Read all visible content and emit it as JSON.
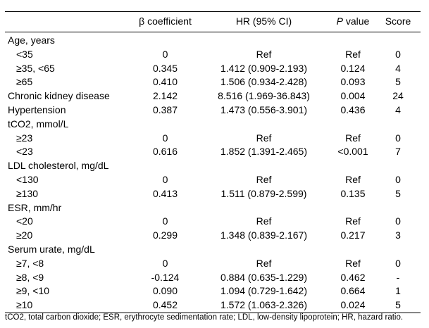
{
  "header": {
    "col0": "",
    "col1": "β coefficient",
    "col2": "HR (95% CI)",
    "col3_italic": "P",
    "col3_rest": " value",
    "col4": "Score"
  },
  "rows": [
    {
      "label": "Age, years",
      "sub": false,
      "beta": "",
      "hr": "",
      "p": "",
      "score": ""
    },
    {
      "label": "<35",
      "sub": true,
      "beta": "0",
      "hr": "Ref",
      "p": "Ref",
      "score": "0"
    },
    {
      "label": "≥35, <65",
      "sub": true,
      "beta": "0.345",
      "hr": "1.412 (0.909-2.193)",
      "p": "0.124",
      "score": "4"
    },
    {
      "label": "≥65",
      "sub": true,
      "beta": "0.410",
      "hr": "1.506 (0.934-2.428)",
      "p": "0.093",
      "score": "5"
    },
    {
      "label": "Chronic kidney disease",
      "sub": false,
      "beta": "2.142",
      "hr": "8.516 (1.969-36.843)",
      "p": "0.004",
      "score": "24"
    },
    {
      "label": "Hypertension",
      "sub": false,
      "beta": "0.387",
      "hr": "1.473 (0.556-3.901)",
      "p": "0.436",
      "score": "4"
    },
    {
      "label": "tCO2, mmol/L",
      "sub": false,
      "beta": "",
      "hr": "",
      "p": "",
      "score": ""
    },
    {
      "label": "≥23",
      "sub": true,
      "beta": "0",
      "hr": "Ref",
      "p": "Ref",
      "score": "0"
    },
    {
      "label": "<23",
      "sub": true,
      "beta": "0.616",
      "hr": "1.852 (1.391-2.465)",
      "p": "<0.001",
      "score": "7"
    },
    {
      "label": "LDL cholesterol, mg/dL",
      "sub": false,
      "beta": "",
      "hr": "",
      "p": "",
      "score": ""
    },
    {
      "label": "<130",
      "sub": true,
      "beta": "0",
      "hr": "Ref",
      "p": "Ref",
      "score": "0"
    },
    {
      "label": "≥130",
      "sub": true,
      "beta": "0.413",
      "hr": "1.511 (0.879-2.599)",
      "p": "0.135",
      "score": "5"
    },
    {
      "label": "ESR, mm/hr",
      "sub": false,
      "beta": "",
      "hr": "",
      "p": "",
      "score": ""
    },
    {
      "label": "<20",
      "sub": true,
      "beta": "0",
      "hr": "Ref",
      "p": "Ref",
      "score": "0"
    },
    {
      "label": "≥20",
      "sub": true,
      "beta": "0.299",
      "hr": "1.348 (0.839-2.167)",
      "p": "0.217",
      "score": "3"
    },
    {
      "label": "Serum urate, mg/dL",
      "sub": false,
      "beta": "",
      "hr": "",
      "p": "",
      "score": ""
    },
    {
      "label": "≥7, <8",
      "sub": true,
      "beta": "0",
      "hr": "Ref",
      "p": "Ref",
      "score": "0"
    },
    {
      "label": "≥8, <9",
      "sub": true,
      "beta": "-0.124",
      "hr": "0.884 (0.635-1.229)",
      "p": "0.462",
      "score": "-"
    },
    {
      "label": "≥9, <10",
      "sub": true,
      "beta": "0.090",
      "hr": "1.094 (0.729-1.642)",
      "p": "0.664",
      "score": "1"
    },
    {
      "label": "≥10",
      "sub": true,
      "beta": "0.452",
      "hr": "1.572 (1.063-2.326)",
      "p": "0.024",
      "score": "5"
    }
  ],
  "footnote": "tCO2, total carbon dioxide; ESR, erythrocyte sedimentation rate; LDL, low-density lipoprotein; HR, hazard ratio."
}
